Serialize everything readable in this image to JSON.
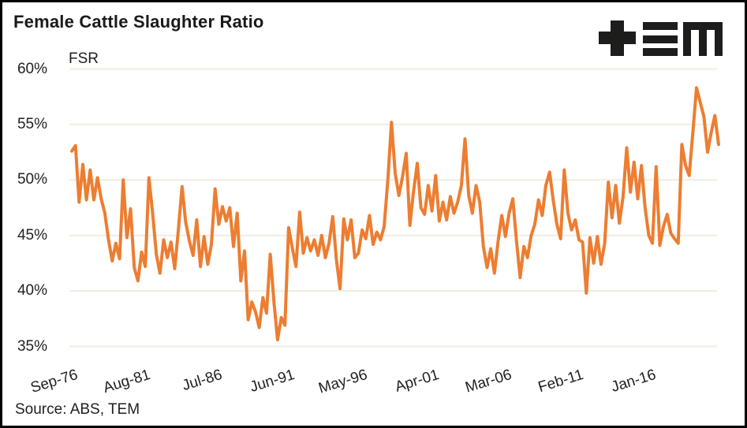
{
  "title": "Female Cattle Slaughter Ratio",
  "source": "Source: ABS, TEM",
  "logo": {
    "name": "TEM",
    "color": "#1d1d1b"
  },
  "colors": {
    "line": "#ED7D31",
    "gridline": "#EFEDE1",
    "text": "#1f1f1f",
    "title_text": "#1a1a1a",
    "background": "#ffffff",
    "border": "#000000"
  },
  "chart_data": {
    "type": "line",
    "title": "Female Cattle Slaughter Ratio",
    "series_label": "FSR",
    "y_unit": "percent",
    "ylim": [
      35,
      60
    ],
    "y_ticks": [
      "60%",
      "55%",
      "50%",
      "45%",
      "40%",
      "35%"
    ],
    "y_tick_values": [
      60,
      55,
      50,
      45,
      40,
      35
    ],
    "x_tick_labels": [
      "Sep-76",
      "Aug-81",
      "Jul-86",
      "Jun-91",
      "May-96",
      "Apr-01",
      "Mar-06",
      "Feb-11",
      "Jan-16"
    ],
    "x_tick_months": [
      0,
      59,
      118,
      177,
      236,
      295,
      354,
      413,
      472
    ],
    "x_start": "Sep-1976",
    "x_end": "Sep-2020",
    "total_months": 528,
    "point_interval_months": 3,
    "grid": true,
    "legend_position": "none",
    "values": [
      52.6,
      53.1,
      48.0,
      51.4,
      48.2,
      50.9,
      48.2,
      50.2,
      48.3,
      47.0,
      44.6,
      42.7,
      44.3,
      42.9,
      50.0,
      44.8,
      47.4,
      42.1,
      40.9,
      43.5,
      42.2,
      50.2,
      47.0,
      43.3,
      41.6,
      44.6,
      43.0,
      44.4,
      42.0,
      45.5,
      49.4,
      46.2,
      44.5,
      43.2,
      46.4,
      42.2,
      44.9,
      42.4,
      44.2,
      49.2,
      46.0,
      47.6,
      46.3,
      47.5,
      44.0,
      47.0,
      40.9,
      43.6,
      37.4,
      39.0,
      38.1,
      36.7,
      39.4,
      38.0,
      43.3,
      39.0,
      35.6,
      37.6,
      36.9,
      45.7,
      43.9,
      42.2,
      47.1,
      43.4,
      44.8,
      43.6,
      44.6,
      43.2,
      45.0,
      43.0,
      44.3,
      46.7,
      42.8,
      40.2,
      46.5,
      44.6,
      46.4,
      43.0,
      43.4,
      45.5,
      44.7,
      46.8,
      44.2,
      45.3,
      44.6,
      45.8,
      50.0,
      55.2,
      50.6,
      48.6,
      50.3,
      52.4,
      45.9,
      49.0,
      51.5,
      47.5,
      46.9,
      49.5,
      47.2,
      50.4,
      46.3,
      48.0,
      46.4,
      48.5,
      47.0,
      48.0,
      49.5,
      53.7,
      48.6,
      47.0,
      49.5,
      48.0,
      44.0,
      42.1,
      43.8,
      41.6,
      44.5,
      46.8,
      44.9,
      47.0,
      48.3,
      44.5,
      41.2,
      44.0,
      43.0,
      45.0,
      46.0,
      48.2,
      46.8,
      49.5,
      50.7,
      48.2,
      46.0,
      44.7,
      50.9,
      47.0,
      45.5,
      46.4,
      44.6,
      44.4,
      39.8,
      44.8,
      42.5,
      44.9,
      42.4,
      44.3,
      49.8,
      46.6,
      49.5,
      46.1,
      48.5,
      52.9,
      48.9,
      51.6,
      48.3,
      51.3,
      47.5,
      45.0,
      44.3,
      51.2,
      44.1,
      45.8,
      46.9,
      45.2,
      44.7,
      44.3,
      53.2,
      51.3,
      50.4,
      54.3,
      58.3,
      57.0,
      55.7,
      52.5,
      54.3,
      55.8,
      53.2
    ]
  }
}
